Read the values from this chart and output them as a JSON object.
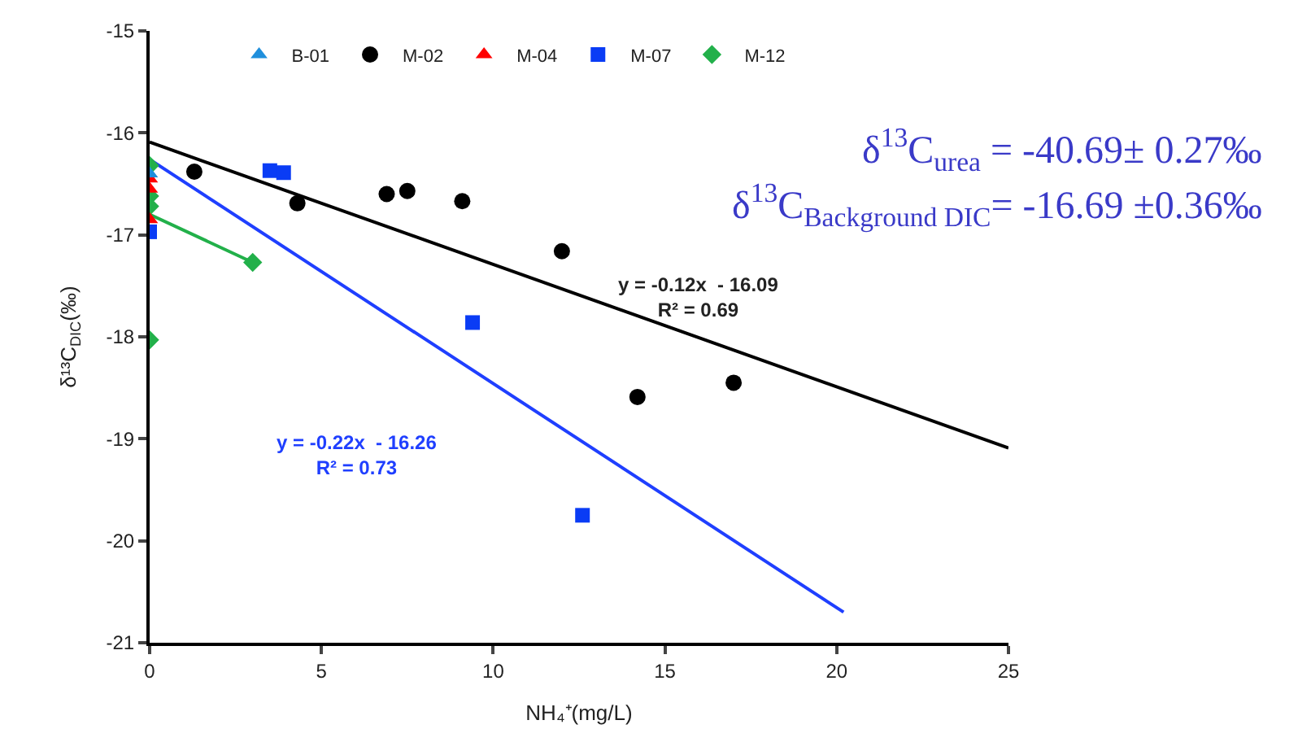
{
  "chart_data": {
    "type": "scatter",
    "xlabel": "NH₄⁺(mg/L)",
    "ylabel": "δ¹³C$_{DIC}$(‰)",
    "xlim": [
      0,
      25
    ],
    "xticks": [
      0,
      5,
      10,
      15,
      20,
      25
    ],
    "ylim": [
      -21,
      -15
    ],
    "yticks": [
      -21,
      -20,
      -19,
      -18,
      -17,
      -16,
      -15
    ],
    "legend": "top",
    "series": [
      {
        "name": "B-01",
        "color": "#1f8fdc",
        "marker": "triangle",
        "x": [
          0
        ],
        "values": [
          -16.4
        ]
      },
      {
        "name": "M-02",
        "color": "#000000",
        "marker": "circle",
        "x": [
          1.3,
          4.3,
          6.9,
          7.5,
          9.1,
          12.0,
          14.2,
          17.0
        ],
        "values": [
          -16.38,
          -16.69,
          -16.6,
          -16.57,
          -16.67,
          -17.16,
          -18.59,
          -18.45
        ]
      },
      {
        "name": "M-04",
        "color": "#ff0000",
        "marker": "triangle",
        "x": [
          0,
          0,
          0
        ],
        "values": [
          -16.45,
          -16.55,
          -16.85
        ]
      },
      {
        "name": "M-07",
        "color": "#0a3cf5",
        "marker": "square",
        "x": [
          0,
          3.5,
          3.9,
          9.4,
          12.6
        ],
        "values": [
          -16.97,
          -16.37,
          -16.39,
          -17.86,
          -19.75
        ]
      },
      {
        "name": "M-12",
        "color": "#22b04a",
        "marker": "diamond",
        "x": [
          0,
          0,
          0,
          0,
          3.0
        ],
        "values": [
          -16.32,
          -16.62,
          -16.72,
          -18.03,
          -17.27
        ]
      },
      {
        "type": "line",
        "color": "#22b04a",
        "marker": "none",
        "x": [
          0,
          3.0
        ],
        "values": [
          -16.8,
          -17.27
        ]
      },
      {
        "type": "line",
        "color": "#000000",
        "marker": "none",
        "x": [
          0,
          25
        ],
        "values": [
          -16.09,
          -19.09
        ]
      },
      {
        "type": "line",
        "color": "#1f3fff",
        "marker": "none",
        "x": [
          0,
          20.2
        ],
        "values": [
          -16.26,
          -20.7
        ]
      }
    ],
    "annotations": [
      "y = -0.12x  - 16.09\nR² = 0.69",
      "y = -0.22x  - 16.26\nR² = 0.73",
      "δ$^{13}$C$_{urea}$ = -40.69± 0.27‰",
      "δ$^{13}$C$_{Background DIC}$= -16.69 ±0.36‰"
    ]
  }
}
